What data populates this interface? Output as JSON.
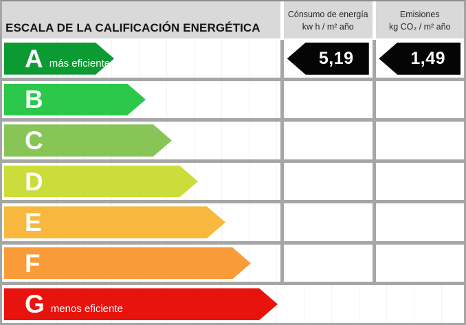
{
  "title": "ESCALA DE LA CALIFICACIÓN ENERGÉTICA",
  "columns": {
    "consumo": {
      "line1": "Cónsumo de energía",
      "line2": "kw h / m² año"
    },
    "emisiones": {
      "line1": "Emisiones",
      "line2": "kg CO₂ / m² año"
    }
  },
  "scale": {
    "rows": [
      {
        "grade": "A",
        "note": "más eficiente",
        "color": "#0B9B32",
        "arrow_width": 160
      },
      {
        "grade": "B",
        "note": "",
        "color": "#2BC84C",
        "arrow_width": 206
      },
      {
        "grade": "C",
        "note": "",
        "color": "#86C556",
        "arrow_width": 244
      },
      {
        "grade": "D",
        "note": "",
        "color": "#CCDC3A",
        "arrow_width": 282
      },
      {
        "grade": "E",
        "note": "",
        "color": "#F8B83E",
        "arrow_width": 322
      },
      {
        "grade": "F",
        "note": "",
        "color": "#F89B38",
        "arrow_width": 359
      },
      {
        "grade": "G",
        "note": "menos eficiente",
        "color": "#E9130D",
        "arrow_width": 398
      }
    ]
  },
  "values": {
    "rating_row": "A",
    "consumo": "5,19",
    "emisiones": "1,49",
    "arrow_color": "#050505"
  },
  "colors": {
    "header_bg": "#D9D9D9",
    "grid_line": "#A6A6A6",
    "cell_bg": "#FFFFFF",
    "text_on_arrow": "#FFFFFF"
  },
  "chart_data": {
    "type": "bar",
    "title": "ESCALA DE LA CALIFICACIÓN ENERGÉTICA",
    "categories": [
      "A",
      "B",
      "C",
      "D",
      "E",
      "F",
      "G"
    ],
    "category_notes": {
      "A": "más eficiente",
      "G": "menos eficiente"
    },
    "series": [
      {
        "name": "scale-arrow-length-px",
        "values": [
          160,
          206,
          244,
          282,
          322,
          359,
          398
        ]
      }
    ],
    "bar_colors": [
      "#0B9B32",
      "#2BC84C",
      "#86C556",
      "#CCDC3A",
      "#F8B83E",
      "#F89B38",
      "#E9130D"
    ],
    "annotations": [
      {
        "row": "A",
        "column": "Cónsumo de energía kw h / m² año",
        "value": "5,19"
      },
      {
        "row": "A",
        "column": "Emisiones kg CO₂ / m² año",
        "value": "1,49"
      }
    ],
    "rated_grade": "A",
    "legend_position": "none",
    "grid": false
  }
}
